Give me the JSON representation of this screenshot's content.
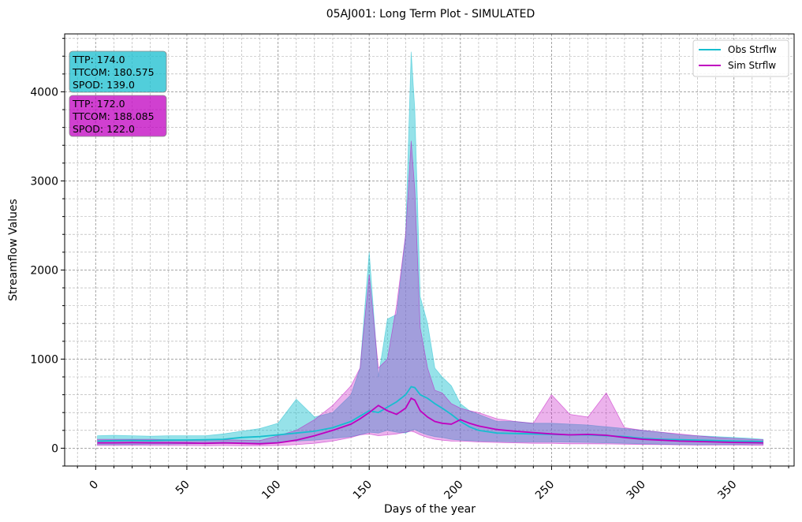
{
  "chart_data": {
    "type": "line",
    "title": "05AJ001: Long Term Plot - SIMULATED",
    "xlabel": "Days of the year",
    "ylabel": "Streamflow Values",
    "xlim": [
      -17,
      383
    ],
    "ylim": [
      -200,
      4650
    ],
    "xticks": [
      0,
      50,
      100,
      150,
      200,
      250,
      300,
      350
    ],
    "xticklabels": [
      "0",
      "50",
      "100",
      "150",
      "200",
      "250",
      "300",
      "350"
    ],
    "yticks": [
      0,
      1000,
      2000,
      3000,
      4000
    ],
    "yticklabels": [
      "0",
      "1000",
      "2000",
      "3000",
      "4000"
    ],
    "grid": true,
    "legend_position": "top-right",
    "series": [
      {
        "name": "Obs Strflw",
        "color": "#17becf",
        "x": [
          1,
          10,
          20,
          30,
          40,
          50,
          60,
          70,
          80,
          90,
          100,
          110,
          120,
          130,
          140,
          145,
          150,
          155,
          160,
          165,
          170,
          173,
          175,
          178,
          182,
          186,
          190,
          195,
          200,
          205,
          210,
          220,
          230,
          240,
          250,
          260,
          270,
          280,
          290,
          300,
          310,
          320,
          330,
          340,
          350,
          360,
          366
        ],
        "mean": [
          80,
          85,
          88,
          85,
          90,
          92,
          95,
          100,
          120,
          130,
          150,
          170,
          190,
          230,
          300,
          360,
          420,
          400,
          460,
          520,
          600,
          690,
          680,
          600,
          560,
          500,
          450,
          380,
          300,
          240,
          200,
          170,
          165,
          160,
          155,
          150,
          150,
          140,
          130,
          110,
          100,
          95,
          90,
          85,
          80,
          78,
          75
        ],
        "lower": [
          40,
          40,
          42,
          45,
          45,
          48,
          50,
          52,
          55,
          60,
          70,
          80,
          90,
          110,
          130,
          150,
          180,
          170,
          200,
          180,
          170,
          200,
          210,
          180,
          150,
          130,
          120,
          100,
          90,
          85,
          80,
          75,
          70,
          70,
          70,
          68,
          65,
          60,
          55,
          50,
          45,
          40,
          38,
          40,
          42,
          45,
          45
        ],
        "upper": [
          140,
          145,
          140,
          135,
          140,
          140,
          140,
          160,
          190,
          220,
          280,
          550,
          350,
          400,
          600,
          900,
          2200,
          800,
          1450,
          1500,
          2400,
          4450,
          3800,
          1700,
          1400,
          900,
          800,
          700,
          500,
          420,
          380,
          300,
          300,
          280,
          280,
          270,
          260,
          240,
          220,
          200,
          180,
          150,
          140,
          130,
          120,
          110,
          100
        ]
      },
      {
        "name": "Sim Strflw",
        "color": "#c000c0",
        "x": [
          1,
          10,
          20,
          30,
          40,
          50,
          60,
          70,
          80,
          90,
          100,
          110,
          120,
          130,
          140,
          145,
          150,
          155,
          160,
          165,
          170,
          173,
          175,
          178,
          182,
          186,
          190,
          195,
          200,
          205,
          210,
          220,
          230,
          240,
          250,
          260,
          270,
          280,
          290,
          300,
          310,
          320,
          330,
          340,
          350,
          360,
          366
        ],
        "mean": [
          60,
          60,
          62,
          60,
          60,
          58,
          55,
          60,
          55,
          50,
          60,
          90,
          140,
          200,
          270,
          330,
          400,
          480,
          420,
          380,
          450,
          560,
          540,
          420,
          350,
          300,
          280,
          270,
          320,
          280,
          250,
          210,
          190,
          175,
          160,
          150,
          155,
          145,
          120,
          100,
          90,
          80,
          75,
          70,
          65,
          62,
          60
        ],
        "lower": [
          30,
          30,
          32,
          30,
          30,
          30,
          28,
          30,
          28,
          28,
          30,
          40,
          55,
          80,
          120,
          150,
          160,
          140,
          150,
          160,
          180,
          190,
          180,
          150,
          120,
          100,
          90,
          80,
          80,
          75,
          70,
          65,
          60,
          55,
          55,
          50,
          50,
          48,
          45,
          42,
          40,
          38,
          35,
          35,
          35,
          33,
          32
        ],
        "upper": [
          100,
          100,
          100,
          100,
          95,
          90,
          90,
          95,
          90,
          85,
          140,
          200,
          320,
          480,
          700,
          900,
          1950,
          900,
          1000,
          1600,
          2400,
          3450,
          2900,
          1350,
          900,
          650,
          620,
          500,
          450,
          420,
          400,
          330,
          300,
          280,
          600,
          380,
          350,
          620,
          230,
          200,
          180,
          160,
          140,
          120,
          110,
          100,
          95
        ]
      }
    ],
    "annotations": [
      {
        "lines": [
          "TTP: 174.0",
          "TTCOM: 180.575",
          "SPOD: 139.0"
        ],
        "color": "#17becf"
      },
      {
        "lines": [
          "TTP: 172.0",
          "TTCOM: 188.085",
          "SPOD: 122.0"
        ],
        "color": "#c000c0"
      }
    ]
  }
}
